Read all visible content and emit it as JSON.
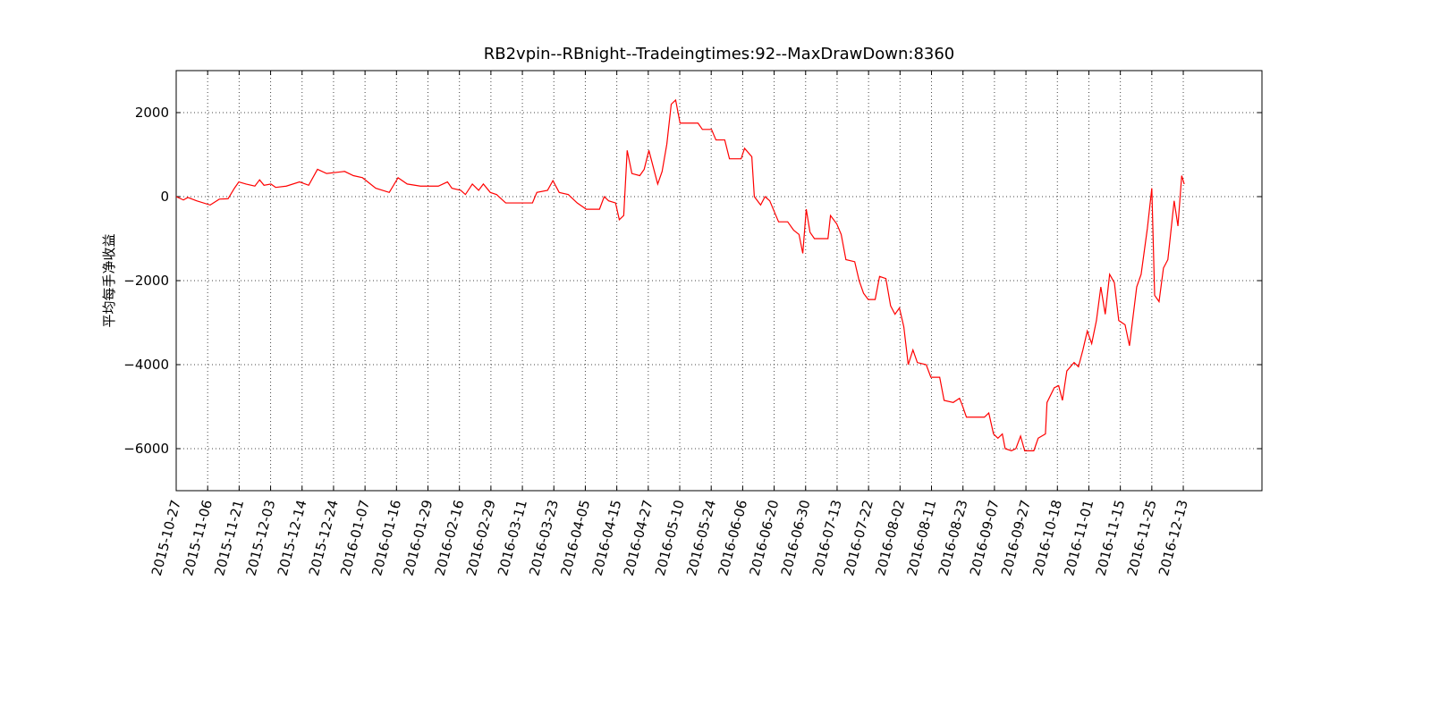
{
  "chart_data": {
    "type": "line",
    "title": "RB2vpin--RBnight--Tradeingtimes:92--MaxDrawDown:8360",
    "y_label": "平均每手净收益",
    "xlim": [
      0,
      345
    ],
    "ylim": [
      -7000,
      3000
    ],
    "xticks": [
      {
        "value": 0,
        "label": "2015-10-27"
      },
      {
        "value": 10,
        "label": "2015-11-06"
      },
      {
        "value": 20,
        "label": "2015-11-21"
      },
      {
        "value": 30,
        "label": "2015-12-03"
      },
      {
        "value": 40,
        "label": "2015-12-14"
      },
      {
        "value": 50,
        "label": "2015-12-24"
      },
      {
        "value": 60,
        "label": "2016-01-07"
      },
      {
        "value": 70,
        "label": "2016-01-16"
      },
      {
        "value": 80,
        "label": "2016-01-29"
      },
      {
        "value": 90,
        "label": "2016-02-16"
      },
      {
        "value": 100,
        "label": "2016-02-29"
      },
      {
        "value": 110,
        "label": "2016-03-11"
      },
      {
        "value": 120,
        "label": "2016-03-23"
      },
      {
        "value": 130,
        "label": "2016-04-05"
      },
      {
        "value": 140,
        "label": "2016-04-15"
      },
      {
        "value": 150,
        "label": "2016-04-27"
      },
      {
        "value": 160,
        "label": "2016-05-10"
      },
      {
        "value": 170,
        "label": "2016-05-24"
      },
      {
        "value": 180,
        "label": "2016-06-06"
      },
      {
        "value": 190,
        "label": "2016-06-20"
      },
      {
        "value": 200,
        "label": "2016-06-30"
      },
      {
        "value": 210,
        "label": "2016-07-13"
      },
      {
        "value": 220,
        "label": "2016-07-22"
      },
      {
        "value": 230,
        "label": "2016-08-02"
      },
      {
        "value": 240,
        "label": "2016-08-11"
      },
      {
        "value": 250,
        "label": "2016-08-23"
      },
      {
        "value": 260,
        "label": "2016-09-07"
      },
      {
        "value": 270,
        "label": "2016-09-27"
      },
      {
        "value": 280,
        "label": "2016-10-18"
      },
      {
        "value": 290,
        "label": "2016-11-01"
      },
      {
        "value": 300,
        "label": "2016-11-15"
      },
      {
        "value": 310,
        "label": "2016-11-25"
      },
      {
        "value": 320,
        "label": "2016-12-13"
      }
    ],
    "yticks": [
      {
        "value": -6000,
        "label": "−6000"
      },
      {
        "value": -4000,
        "label": "−4000"
      },
      {
        "value": -2000,
        "label": "−2000"
      },
      0,
      2000
    ],
    "grid": true,
    "color": "#ff0000",
    "x": [
      0,
      2.3,
      3.7,
      6.5,
      10.8,
      13.7,
      16.5,
      18.5,
      19.9,
      22.2,
      25.0,
      26.5,
      27.9,
      30.1,
      31.6,
      35.0,
      39.2,
      42.1,
      44.9,
      47.8,
      53.5,
      56.3,
      59.2,
      63.4,
      67.7,
      70.5,
      73.4,
      77.6,
      83.3,
      86.2,
      87.6,
      90.4,
      91.9,
      94.1,
      96.1,
      97.6,
      99.8,
      101.8,
      104.7,
      113.2,
      114.6,
      118.0,
      119.7,
      121.7,
      124.6,
      127.4,
      130.3,
      134.5,
      136.0,
      137.4,
      139.6,
      140.8,
      142.2,
      143.3,
      144.8,
      147.3,
      148.7,
      150.2,
      153.0,
      154.4,
      155.9,
      157.3,
      158.7,
      160.1,
      165.8,
      167.2,
      170.1,
      171.5,
      174.3,
      175.8,
      179.5,
      180.6,
      182.9,
      183.7,
      185.7,
      187.1,
      188.6,
      190.0,
      191.4,
      194.3,
      196.2,
      197.9,
      199.1,
      200.2,
      201.4,
      202.8,
      207.1,
      207.9,
      209.9,
      211.3,
      212.8,
      215.6,
      217.0,
      218.4,
      219.9,
      222.1,
      223.5,
      225.5,
      227.0,
      228.4,
      229.8,
      231.2,
      232.6,
      234.1,
      235.5,
      238.3,
      239.8,
      242.6,
      244.0,
      246.9,
      248.9,
      249.7,
      251.1,
      256.8,
      258.2,
      259.7,
      261.1,
      262.5,
      263.4,
      265.4,
      266.8,
      268.3,
      269.6,
      272.5,
      273.9,
      276.2,
      276.7,
      279.0,
      280.4,
      281.6,
      283.0,
      285.3,
      286.7,
      288.1,
      289.5,
      290.9,
      292.4,
      293.8,
      295.2,
      296.6,
      298.1,
      299.5,
      301.5,
      302.9,
      305.2,
      306.6,
      308.6,
      310.0,
      310.9,
      312.3,
      313.7,
      315.1,
      317.1,
      318.3,
      319.5,
      320.3
    ],
    "values": [
      0,
      -80,
      -20,
      -100,
      -200,
      -60,
      -50,
      200,
      350,
      300,
      250,
      400,
      270,
      300,
      220,
      250,
      350,
      270,
      650,
      550,
      600,
      500,
      450,
      200,
      100,
      450,
      300,
      250,
      250,
      350,
      200,
      150,
      50,
      300,
      150,
      300,
      100,
      50,
      -150,
      -150,
      100,
      150,
      380,
      100,
      50,
      -150,
      -300,
      -300,
      0,
      -100,
      -150,
      -550,
      -450,
      1100,
      550,
      500,
      650,
      1100,
      300,
      600,
      1250,
      2200,
      2300,
      1750,
      1750,
      1600,
      1600,
      1350,
      1350,
      900,
      900,
      1150,
      950,
      0,
      -200,
      0,
      -100,
      -350,
      -600,
      -600,
      -800,
      -900,
      -1350,
      -300,
      -850,
      -1000,
      -1000,
      -450,
      -650,
      -900,
      -1500,
      -1550,
      -2000,
      -2300,
      -2450,
      -2450,
      -1900,
      -1950,
      -2600,
      -2800,
      -2650,
      -3100,
      -4000,
      -3650,
      -3950,
      -4000,
      -4300,
      -4300,
      -4850,
      -4900,
      -4800,
      -4950,
      -5250,
      -5250,
      -5150,
      -5650,
      -5750,
      -5650,
      -6000,
      -6050,
      -6000,
      -5700,
      -6050,
      -6050,
      -5750,
      -5650,
      -4900,
      -4550,
      -4500,
      -4850,
      -4150,
      -3950,
      -4050,
      -3650,
      -3200,
      -3500,
      -2950,
      -2150,
      -2800,
      -1850,
      -2050,
      -2950,
      -3050,
      -3550,
      -2150,
      -1850,
      -750,
      200,
      -2350,
      -2500,
      -1700,
      -1500,
      -100,
      -700,
      500,
      300
    ]
  }
}
